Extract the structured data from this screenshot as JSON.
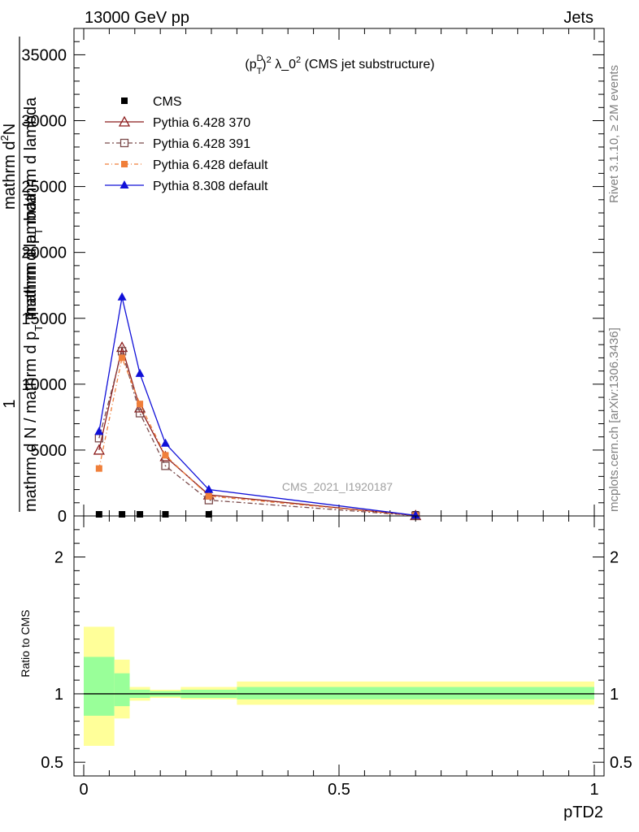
{
  "header": {
    "left_label": "13000 GeV pp",
    "right_label": "Jets"
  },
  "side_labels": {
    "rivet": "Rivet 3.1.10, ≥ 2M events",
    "mcplots": "mcplots.cern.ch [arXiv:1306.3436]"
  },
  "chart_data": [
    {
      "type": "line",
      "title": "(p_T^D)^2 λ_0^2 (CMS jet substructure)",
      "title_parts": {
        "open": "(p",
        "sup": "D",
        "sub": "T",
        "close": ")",
        "pow": "2",
        "mid": " λ_0",
        "pow2": "2",
        "tail": " (CMS jet substructure)"
      },
      "watermark": "CMS_2021_I1920187",
      "ylabel_lines": [
        "1",
        "mathrm d N / mathrm d p_T mathrm d lambda",
        "mathrm d^2N",
        "mathrm d p_T mathrm d lambda"
      ],
      "ylabel_printed": {
        "numerator_one": "1",
        "denominator": "mathrm d N / mathrm d p",
        "denominator_sub": "T",
        "denominator_tail": " mathrm d lambda",
        "second_num": "mathrm d",
        "second_num_sup": "2",
        "second_num_tail": "N",
        "second_den": "mathrm d p",
        "second_den_sub": "T",
        "second_den_tail": " mathrm d lambda"
      },
      "xlim": [
        0,
        1
      ],
      "ylim": [
        0,
        37000
      ],
      "yticks": [
        0,
        5000,
        10000,
        15000,
        20000,
        25000,
        30000,
        35000
      ],
      "ytick_labels": [
        "0",
        "5000",
        "10000",
        "15000",
        "20000",
        "25000",
        "30000",
        "35000"
      ],
      "legend_position": "top-left",
      "series": [
        {
          "name": "CMS",
          "color": "#000000",
          "marker": "square-filled",
          "dash": "",
          "x": [
            0.03,
            0.075,
            0.11,
            0.16,
            0.245,
            0.65
          ],
          "y": [
            0,
            0,
            0,
            0,
            0,
            0
          ]
        },
        {
          "name": "Pythia 6.428 370",
          "color": "#8b1a1a",
          "marker": "triangle-open",
          "dash": "",
          "x": [
            0.03,
            0.075,
            0.11,
            0.16,
            0.245,
            0.65
          ],
          "y": [
            5000,
            12800,
            8200,
            4500,
            1600,
            30
          ]
        },
        {
          "name": "Pythia 6.428 391",
          "color": "#7a4a4a",
          "marker": "square-open",
          "dash": "6,3,2,3",
          "x": [
            0.03,
            0.075,
            0.11,
            0.16,
            0.245,
            0.65
          ],
          "y": [
            5900,
            12500,
            7800,
            3800,
            1200,
            20
          ]
        },
        {
          "name": "Pythia 6.428 default",
          "color": "#f07f3a",
          "marker": "square-filled",
          "dash": "5,3,1,3",
          "x": [
            0.03,
            0.075,
            0.11,
            0.16,
            0.245,
            0.65
          ],
          "y": [
            3600,
            12000,
            8500,
            4600,
            1500,
            25
          ]
        },
        {
          "name": "Pythia 8.308 default",
          "color": "#1010d8",
          "marker": "triangle-filled",
          "dash": "",
          "x": [
            0.03,
            0.075,
            0.11,
            0.16,
            0.245,
            0.65
          ],
          "y": [
            6400,
            16600,
            10800,
            5500,
            2000,
            40
          ]
        }
      ]
    },
    {
      "type": "area",
      "ylabel": "Ratio to CMS",
      "xlabel": "pTD2",
      "xlim": [
        0,
        1
      ],
      "ylim": [
        0.4,
        2.3
      ],
      "yticks": [
        0.5,
        1,
        2
      ],
      "ytick_labels": [
        "0.5",
        "1",
        "2"
      ],
      "xticks": [
        0,
        0.5,
        1
      ],
      "xtick_labels": [
        "0",
        "0.5",
        "1"
      ],
      "reference_line": 1,
      "bands": {
        "bins": [
          [
            0.0,
            0.06
          ],
          [
            0.06,
            0.09
          ],
          [
            0.09,
            0.13
          ],
          [
            0.13,
            0.19
          ],
          [
            0.19,
            0.3
          ],
          [
            0.3,
            1.0
          ]
        ],
        "inner": [
          [
            0.84,
            1.27
          ],
          [
            0.91,
            1.15
          ],
          [
            0.97,
            1.03
          ],
          [
            0.98,
            1.02
          ],
          [
            0.97,
            1.03
          ],
          [
            0.96,
            1.05
          ]
        ],
        "outer": [
          [
            0.62,
            1.49
          ],
          [
            0.82,
            1.25
          ],
          [
            0.95,
            1.05
          ],
          [
            0.97,
            1.03
          ],
          [
            0.96,
            1.05
          ],
          [
            0.92,
            1.09
          ]
        ],
        "inner_color": "#99ff99",
        "outer_color": "#ffff99"
      }
    }
  ]
}
